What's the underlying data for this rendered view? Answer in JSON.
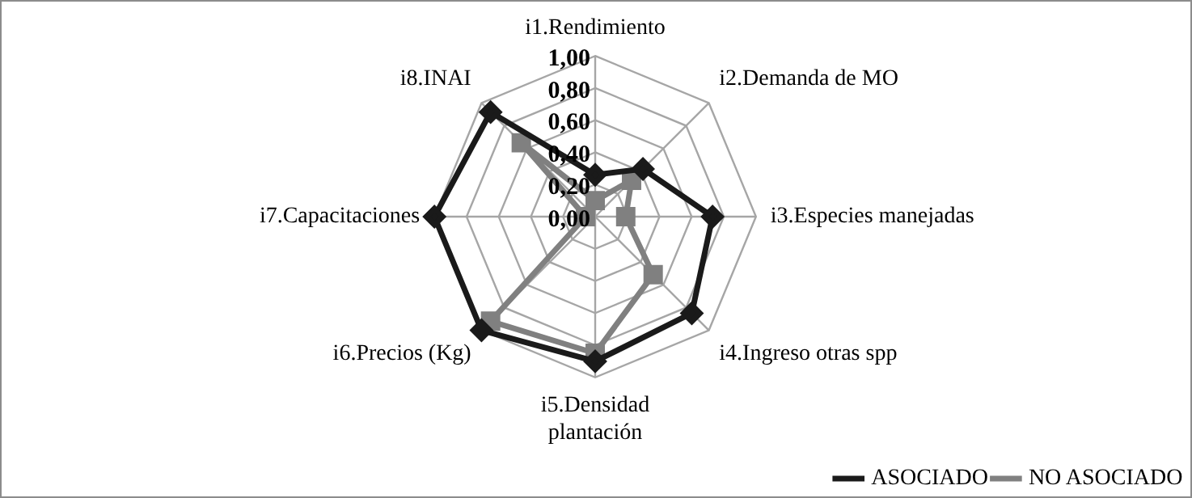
{
  "chart_data": {
    "type": "radar",
    "categories": [
      "i1.Rendimiento",
      "i2.Demanda de MO",
      "i3.Especies manejadas",
      "i4.Ingreso otras spp",
      "i5.Densidad plantación",
      "i6.Precios (Kg)",
      "i7.Capacitaciones",
      "i8.INAI"
    ],
    "series": [
      {
        "name": "ASOCIADO",
        "color": "#1a1a1a",
        "values": [
          0.26,
          0.42,
          0.73,
          0.85,
          0.9,
          1.0,
          1.0,
          0.92
        ]
      },
      {
        "name": "NO ASOCIADO",
        "color": "#808080",
        "values": [
          0.1,
          0.32,
          0.19,
          0.51,
          0.85,
          0.92,
          0.06,
          0.65
        ]
      }
    ],
    "ylim": [
      0,
      1
    ],
    "yticks": [
      {
        "value": 0,
        "label": "0,00"
      },
      {
        "value": 0.2,
        "label": "0,20"
      },
      {
        "value": 0.4,
        "label": "0,40"
      },
      {
        "value": 0.6,
        "label": "0,60"
      },
      {
        "value": 0.8,
        "label": "0,80"
      },
      {
        "value": 1,
        "label": "1,00"
      }
    ],
    "grid": true,
    "legend": "bottom right",
    "marker": [
      "diamond",
      "square"
    ]
  }
}
